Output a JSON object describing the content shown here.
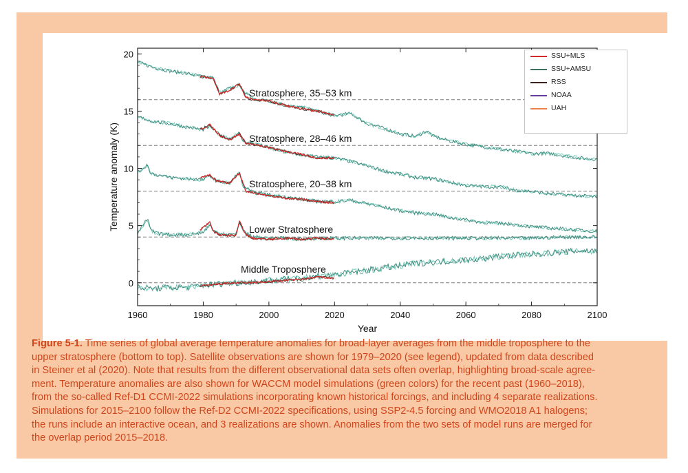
{
  "chart_data": {
    "type": "line",
    "xlabel": "Year",
    "ylabel": "Temperature anomaly (K)",
    "xlim": [
      1960,
      2100
    ],
    "ylim": [
      -2,
      20.5
    ],
    "x_ticks": [
      1960,
      1980,
      2000,
      2020,
      2040,
      2060,
      2080,
      2100
    ],
    "y_ticks": [
      0,
      5,
      10,
      15,
      20
    ],
    "legend_position": "top-right",
    "legend": [
      {
        "name": "SSU+MLS",
        "color": "#d62728"
      },
      {
        "name": "SSU+AMSU",
        "color": "#3f6f5f"
      },
      {
        "name": "RSS",
        "color": "#3b2417"
      },
      {
        "name": "NOAA",
        "color": "#6a3d9a"
      },
      {
        "name": "UAH",
        "color": "#f07e45"
      }
    ],
    "reference_lines": [
      0,
      4,
      8,
      12,
      16
    ],
    "panels": [
      {
        "name": "Stratosphere, 35–53 km",
        "offset": 16,
        "model": [
          [
            1960,
            19.3
          ],
          [
            1965,
            18.8
          ],
          [
            1970,
            18.5
          ],
          [
            1975,
            18.3
          ],
          [
            1980,
            18.0
          ],
          [
            1983,
            17.9
          ],
          [
            1985,
            16.6
          ],
          [
            1988,
            17.0
          ],
          [
            1991,
            17.3
          ],
          [
            1992,
            16.8
          ],
          [
            1995,
            16.1
          ],
          [
            2000,
            15.9
          ],
          [
            2005,
            15.5
          ],
          [
            2010,
            15.3
          ],
          [
            2015,
            15.0
          ],
          [
            2020,
            14.6
          ],
          [
            2025,
            14.8
          ],
          [
            2030,
            13.9
          ],
          [
            2035,
            13.5
          ],
          [
            2040,
            13.0
          ],
          [
            2045,
            12.8
          ],
          [
            2048,
            13.3
          ],
          [
            2050,
            12.8
          ],
          [
            2055,
            12.4
          ],
          [
            2060,
            12.1
          ],
          [
            2065,
            11.9
          ],
          [
            2070,
            11.7
          ],
          [
            2075,
            11.5
          ],
          [
            2080,
            11.3
          ],
          [
            2085,
            11.3
          ],
          [
            2090,
            11.1
          ],
          [
            2095,
            10.9
          ],
          [
            2100,
            10.8
          ]
        ],
        "satellite": [
          [
            1979,
            18.0
          ],
          [
            1983,
            17.9
          ],
          [
            1985,
            16.5
          ],
          [
            1988,
            16.8
          ],
          [
            1991,
            17.4
          ],
          [
            1993,
            16.2
          ],
          [
            1995,
            16.0
          ],
          [
            2000,
            15.9
          ],
          [
            2005,
            15.5
          ],
          [
            2010,
            15.2
          ],
          [
            2015,
            15.0
          ],
          [
            2020,
            14.6
          ]
        ]
      },
      {
        "name": "Stratosphere, 28–46 km",
        "offset": 12,
        "model": [
          [
            1960,
            14.5
          ],
          [
            1965,
            14.1
          ],
          [
            1970,
            13.9
          ],
          [
            1975,
            13.6
          ],
          [
            1980,
            13.4
          ],
          [
            1982,
            13.7
          ],
          [
            1985,
            12.9
          ],
          [
            1988,
            12.6
          ],
          [
            1991,
            13.1
          ],
          [
            1992,
            12.4
          ],
          [
            1995,
            12.2
          ],
          [
            2000,
            11.8
          ],
          [
            2005,
            11.4
          ],
          [
            2010,
            11.2
          ],
          [
            2015,
            11.0
          ],
          [
            2020,
            10.9
          ],
          [
            2025,
            10.6
          ],
          [
            2030,
            10.2
          ],
          [
            2035,
            9.8
          ],
          [
            2040,
            9.5
          ],
          [
            2045,
            9.2
          ],
          [
            2050,
            9.1
          ],
          [
            2055,
            8.8
          ],
          [
            2060,
            8.5
          ],
          [
            2065,
            8.4
          ],
          [
            2070,
            8.4
          ],
          [
            2075,
            8.1
          ],
          [
            2080,
            8.0
          ],
          [
            2085,
            7.8
          ],
          [
            2090,
            7.7
          ],
          [
            2095,
            7.6
          ],
          [
            2100,
            7.5
          ]
        ],
        "satellite": [
          [
            1979,
            13.4
          ],
          [
            1982,
            13.8
          ],
          [
            1985,
            12.9
          ],
          [
            1988,
            12.5
          ],
          [
            1991,
            13.0
          ],
          [
            1993,
            12.2
          ],
          [
            1995,
            12.1
          ],
          [
            2000,
            11.8
          ],
          [
            2005,
            11.5
          ],
          [
            2010,
            11.2
          ],
          [
            2015,
            10.9
          ],
          [
            2020,
            10.9
          ]
        ]
      },
      {
        "name": "Stratosphere, 20–38 km",
        "offset": 8,
        "model": [
          [
            1960,
            9.6
          ],
          [
            1963,
            10.3
          ],
          [
            1964,
            9.6
          ],
          [
            1965,
            9.5
          ],
          [
            1970,
            9.2
          ],
          [
            1975,
            9.1
          ],
          [
            1980,
            9.0
          ],
          [
            1982,
            9.4
          ],
          [
            1984,
            8.9
          ],
          [
            1988,
            8.7
          ],
          [
            1991,
            9.7
          ],
          [
            1992,
            8.5
          ],
          [
            1995,
            7.9
          ],
          [
            2000,
            7.7
          ],
          [
            2005,
            7.5
          ],
          [
            2010,
            7.3
          ],
          [
            2015,
            7.1
          ],
          [
            2020,
            7.1
          ],
          [
            2025,
            7.2
          ],
          [
            2030,
            6.9
          ],
          [
            2035,
            6.6
          ],
          [
            2040,
            6.3
          ],
          [
            2045,
            6.1
          ],
          [
            2050,
            6.0
          ],
          [
            2055,
            5.7
          ],
          [
            2060,
            5.5
          ],
          [
            2065,
            5.3
          ],
          [
            2070,
            5.2
          ],
          [
            2075,
            5.1
          ],
          [
            2080,
            4.9
          ],
          [
            2085,
            4.8
          ],
          [
            2090,
            4.7
          ],
          [
            2095,
            4.6
          ],
          [
            2100,
            4.5
          ]
        ],
        "satellite": [
          [
            1979,
            9.2
          ],
          [
            1982,
            9.4
          ],
          [
            1984,
            8.9
          ],
          [
            1988,
            8.7
          ],
          [
            1991,
            9.6
          ],
          [
            1993,
            8.0
          ],
          [
            1995,
            7.9
          ],
          [
            2000,
            7.6
          ],
          [
            2005,
            7.4
          ],
          [
            2010,
            7.3
          ],
          [
            2015,
            7.1
          ],
          [
            2020,
            7.0
          ]
        ]
      },
      {
        "name": "Lower Stratosphere",
        "offset": 4,
        "model": [
          [
            1960,
            4.3
          ],
          [
            1963,
            5.6
          ],
          [
            1964,
            4.6
          ],
          [
            1966,
            4.3
          ],
          [
            1970,
            4.2
          ],
          [
            1975,
            4.2
          ],
          [
            1980,
            4.4
          ],
          [
            1982,
            5.1
          ],
          [
            1983,
            4.5
          ],
          [
            1985,
            4.3
          ],
          [
            1990,
            4.2
          ],
          [
            1991,
            5.4
          ],
          [
            1992,
            4.6
          ],
          [
            1995,
            4.0
          ],
          [
            2000,
            3.9
          ],
          [
            2005,
            3.9
          ],
          [
            2010,
            3.8
          ],
          [
            2015,
            3.9
          ],
          [
            2020,
            3.9
          ],
          [
            2030,
            3.9
          ],
          [
            2040,
            3.9
          ],
          [
            2050,
            3.9
          ],
          [
            2060,
            3.9
          ],
          [
            2070,
            3.9
          ],
          [
            2080,
            3.9
          ],
          [
            2090,
            4.0
          ],
          [
            2100,
            4.0
          ]
        ],
        "satellite": [
          [
            1979,
            4.6
          ],
          [
            1982,
            5.3
          ],
          [
            1983,
            4.5
          ],
          [
            1985,
            4.2
          ],
          [
            1990,
            4.1
          ],
          [
            1991,
            5.4
          ],
          [
            1993,
            4.2
          ],
          [
            1995,
            3.9
          ],
          [
            2000,
            3.8
          ],
          [
            2005,
            3.9
          ],
          [
            2010,
            3.8
          ],
          [
            2015,
            3.9
          ],
          [
            2020,
            3.8
          ]
        ]
      },
      {
        "name": "Middle Troposphere",
        "offset": 0,
        "model": [
          [
            1960,
            -0.4
          ],
          [
            1965,
            -0.5
          ],
          [
            1970,
            -0.4
          ],
          [
            1975,
            -0.4
          ],
          [
            1980,
            -0.2
          ],
          [
            1985,
            -0.1
          ],
          [
            1990,
            0.0
          ],
          [
            1995,
            0.1
          ],
          [
            2000,
            0.2
          ],
          [
            2005,
            0.3
          ],
          [
            2010,
            0.4
          ],
          [
            2015,
            0.6
          ],
          [
            2020,
            0.7
          ],
          [
            2025,
            0.9
          ],
          [
            2030,
            1.1
          ],
          [
            2035,
            1.3
          ],
          [
            2040,
            1.5
          ],
          [
            2045,
            1.7
          ],
          [
            2050,
            1.8
          ],
          [
            2055,
            1.9
          ],
          [
            2060,
            2.0
          ],
          [
            2065,
            2.1
          ],
          [
            2070,
            2.3
          ],
          [
            2075,
            2.4
          ],
          [
            2080,
            2.5
          ],
          [
            2085,
            2.6
          ],
          [
            2090,
            2.7
          ],
          [
            2095,
            2.8
          ],
          [
            2100,
            2.8
          ]
        ],
        "satellite": [
          [
            1979,
            -0.3
          ],
          [
            1985,
            -0.1
          ],
          [
            1990,
            0.0
          ],
          [
            1995,
            0.0
          ],
          [
            2000,
            0.1
          ],
          [
            2005,
            0.2
          ],
          [
            2010,
            0.3
          ],
          [
            2015,
            0.5
          ],
          [
            2020,
            0.4
          ]
        ]
      }
    ]
  },
  "caption": {
    "label": "Figure 5-1.",
    "lines": [
      " Time series of global average temperature anomalies for broad-layer averages from the middle troposphere to the",
      "upper stratosphere (bottom to top). Satellite observations are shown for 1979–2020 (see legend), updated from data described",
      "in Steiner et al (2020). Note that results from the different observational data sets often overlap, highlighting broad-scale agree-",
      "ment.  Temperature anomalies are also shown for WACCM model simulations (green colors) for the recent past (1960–2018),",
      "from the so-called Ref-D1 CCMI-2022 simulations incorporating known historical forcings, and including 4 separate realizations.",
      "Simulations for 2015–2100 follow the Ref-D2 CCMI-2022 specifications, using SSP2-4.5 forcing and WMO2018 A1 halogens;",
      "the runs include an interactive ocean, and 3 realizations are shown. Anomalies from the two sets of model runs are merged for",
      "the overlap period 2015–2018."
    ]
  },
  "colors": {
    "frame": "#f9c9a6",
    "caption_text": "#d0451b",
    "model_dark": "#2d7f72",
    "model_light": "#66c2ae",
    "satellite": "#d62728"
  }
}
